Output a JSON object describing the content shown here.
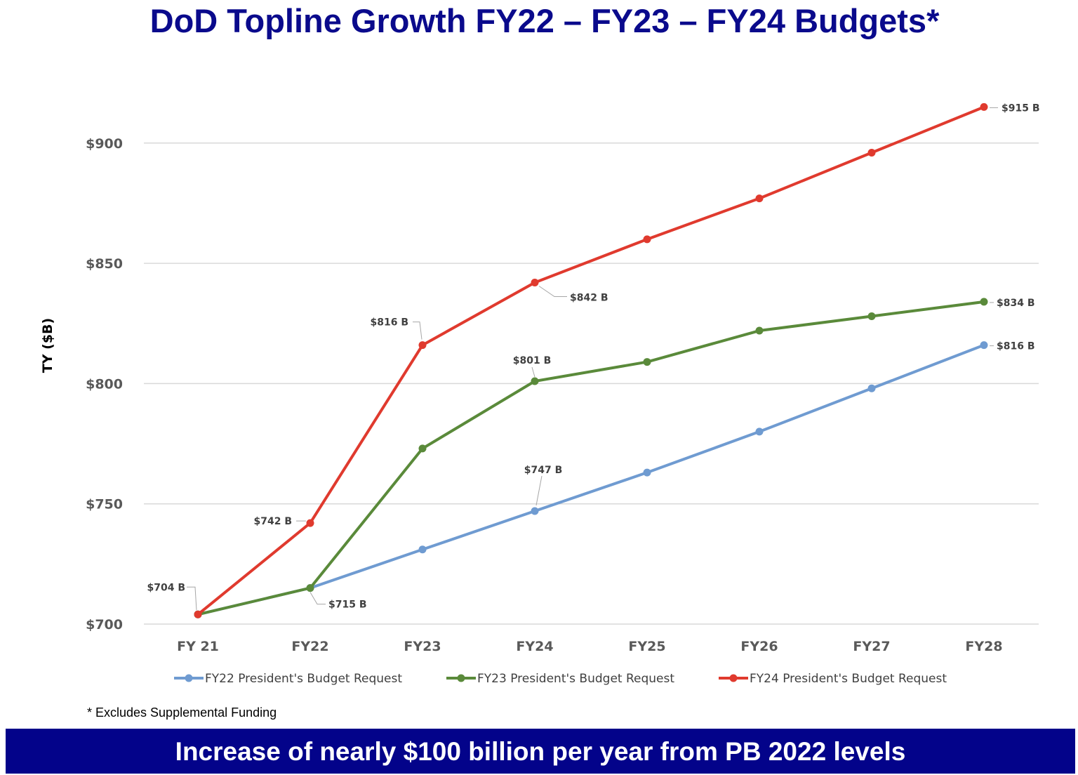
{
  "chart_data": {
    "type": "line",
    "title": "DoD Topline Growth FY22 – FY23 – FY24 Budgets*",
    "ylabel": "TY ($B)",
    "xlabel": "",
    "categories": [
      "FY 21",
      "FY22",
      "FY23",
      "FY24",
      "FY25",
      "FY26",
      "FY27",
      "FY28"
    ],
    "ylim": [
      700,
      925
    ],
    "yticks": [
      700,
      750,
      800,
      850,
      900
    ],
    "ytick_labels": [
      "$700",
      "$750",
      "$800",
      "$850",
      "$900"
    ],
    "grid": true,
    "legend_position": "bottom",
    "series": [
      {
        "name": "FY22 President's Budget Request",
        "color": "#6f9bd1",
        "values": [
          704,
          715,
          731,
          747,
          763,
          780,
          798,
          816
        ]
      },
      {
        "name": "FY23 President's Budget Request",
        "color": "#5a8a3a",
        "values": [
          704,
          715,
          773,
          801,
          809,
          822,
          828,
          834
        ]
      },
      {
        "name": "FY24 President's Budget Request",
        "color": "#e03a2e",
        "values": [
          704,
          742,
          816,
          842,
          860,
          877,
          896,
          915
        ]
      }
    ],
    "data_labels": [
      {
        "series": 2,
        "index": 0,
        "text": "$704 B"
      },
      {
        "series": 2,
        "index": 1,
        "text": "$742 B"
      },
      {
        "series": 2,
        "index": 2,
        "text": "$816 B"
      },
      {
        "series": 2,
        "index": 3,
        "text": "$842 B"
      },
      {
        "series": 2,
        "index": 7,
        "text": "$915 B"
      },
      {
        "series": 1,
        "index": 3,
        "text": "$801 B"
      },
      {
        "series": 1,
        "index": 7,
        "text": "$834 B"
      },
      {
        "series": 1,
        "index": 1,
        "text": "$715 B"
      },
      {
        "series": 0,
        "index": 3,
        "text": "$747 B"
      },
      {
        "series": 0,
        "index": 7,
        "text": "$816 B"
      }
    ]
  },
  "footnote": "* Excludes Supplemental Funding",
  "banner": "Increase of nearly $100 billion per year from PB 2022 levels"
}
